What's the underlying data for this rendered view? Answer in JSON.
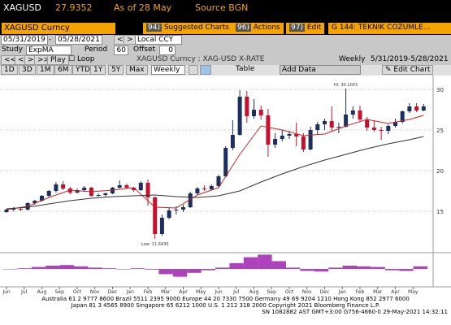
{
  "header": {
    "ticker": "XAGUSD",
    "price": "27.9352",
    "as_of": "As of 28 May",
    "source": "Source BGN"
  },
  "menu": [
    {
      "num": "94)",
      "label": "Suggested Charts"
    },
    {
      "num": "96)",
      "label": "Actions"
    },
    {
      "num": "97)",
      "label": "Edit"
    },
    {
      "num": "G 144:",
      "label": "TEKNIK COZUMLE..."
    }
  ],
  "security": "XAGUSD Curncy",
  "dates": {
    "start": "05/31/2019",
    "end": "05/28/2021",
    "currency": "Local CCY"
  },
  "study": {
    "label": "Study",
    "name": "ExpMA",
    "period_label": "Period",
    "period": "60",
    "offset_label": "Offset",
    "offset": "0"
  },
  "controls": {
    "play": "Play",
    "loop": "Loop",
    "description": "XAGUSD Curncy : XAG-USD X-RATE",
    "frequency": "Weekly",
    "range": "5/31/2019-5/28/2021"
  },
  "ranges": [
    "1D",
    "3D",
    "1M",
    "6M",
    "YTD",
    "1Y",
    "5Y",
    "Max"
  ],
  "toolbar": {
    "frequency": "Weekly",
    "table": "Table",
    "add_data": "Add Data",
    "edit_chart": "Edit Chart"
  },
  "chart_data": {
    "type": "candlestick",
    "up_color": "#1c2f5e",
    "down_color": "#c8102e",
    "ohlc": [
      [
        14.9,
        15.3,
        14.8,
        15.2
      ],
      [
        15.2,
        15.5,
        15.0,
        15.3
      ],
      [
        15.3,
        15.4,
        15.0,
        15.2
      ],
      [
        15.2,
        16.1,
        15.1,
        16.0
      ],
      [
        16.0,
        16.4,
        15.8,
        16.3
      ],
      [
        16.3,
        17.0,
        16.2,
        16.9
      ],
      [
        16.9,
        17.6,
        16.7,
        17.5
      ],
      [
        17.5,
        18.6,
        17.3,
        18.3
      ],
      [
        18.3,
        18.7,
        17.6,
        17.8
      ],
      [
        17.8,
        18.0,
        17.1,
        17.3
      ],
      [
        17.3,
        17.8,
        17.2,
        17.6
      ],
      [
        17.6,
        18.1,
        17.4,
        17.9
      ],
      [
        17.9,
        18.0,
        16.8,
        16.9
      ],
      [
        16.9,
        17.2,
        16.8,
        17.0
      ],
      [
        17.0,
        17.3,
        16.8,
        17.2
      ],
      [
        17.2,
        18.0,
        17.1,
        17.9
      ],
      [
        17.9,
        18.8,
        17.8,
        18.2
      ],
      [
        18.2,
        18.4,
        17.8,
        17.9
      ],
      [
        17.9,
        18.0,
        17.4,
        17.6
      ],
      [
        17.6,
        18.7,
        17.5,
        18.5
      ],
      [
        18.5,
        18.9,
        15.7,
        16.7
      ],
      [
        16.7,
        16.8,
        11.6,
        12.2
      ],
      [
        12.2,
        14.6,
        12.0,
        14.2
      ],
      [
        14.2,
        15.5,
        14.0,
        15.1
      ],
      [
        15.1,
        15.6,
        14.6,
        15.2
      ],
      [
        15.2,
        15.8,
        14.9,
        15.5
      ],
      [
        15.5,
        17.4,
        15.4,
        17.2
      ],
      [
        17.2,
        18.0,
        17.0,
        17.8
      ],
      [
        17.8,
        18.2,
        17.5,
        17.7
      ],
      [
        17.7,
        18.3,
        17.6,
        18.1
      ],
      [
        18.1,
        19.5,
        17.9,
        19.3
      ],
      [
        19.3,
        23.0,
        19.2,
        22.8
      ],
      [
        22.8,
        26.2,
        22.5,
        24.4
      ],
      [
        24.4,
        29.9,
        24.3,
        29.1
      ],
      [
        29.1,
        29.8,
        25.9,
        26.7
      ],
      [
        26.7,
        28.8,
        26.4,
        27.5
      ],
      [
        27.5,
        28.0,
        26.3,
        26.8
      ],
      [
        26.8,
        27.6,
        21.7,
        23.2
      ],
      [
        23.2,
        24.6,
        22.8,
        23.9
      ],
      [
        23.9,
        25.0,
        23.6,
        24.3
      ],
      [
        24.3,
        24.9,
        23.9,
        24.5
      ],
      [
        24.5,
        25.9,
        23.0,
        24.2
      ],
      [
        24.2,
        24.6,
        22.3,
        22.6
      ],
      [
        22.6,
        25.4,
        22.5,
        25.0
      ],
      [
        25.0,
        26.0,
        24.4,
        25.7
      ],
      [
        25.7,
        26.4,
        25.0,
        26.1
      ],
      [
        26.1,
        27.9,
        24.8,
        25.3
      ],
      [
        25.3,
        25.9,
        24.6,
        25.4
      ],
      [
        25.4,
        30.1,
        25.3,
        26.9
      ],
      [
        26.9,
        27.9,
        26.4,
        27.4
      ],
      [
        27.4,
        28.0,
        26.1,
        26.3
      ],
      [
        26.3,
        26.6,
        24.9,
        25.3
      ],
      [
        25.3,
        26.1,
        24.8,
        25.0
      ],
      [
        25.0,
        25.4,
        23.8,
        24.9
      ],
      [
        24.9,
        25.7,
        24.5,
        25.5
      ],
      [
        25.5,
        26.4,
        25.3,
        26.0
      ],
      [
        26.0,
        27.4,
        25.8,
        27.3
      ],
      [
        27.3,
        28.3,
        27.1,
        27.9
      ],
      [
        27.9,
        28.3,
        27.2,
        27.4
      ],
      [
        27.4,
        28.2,
        27.3,
        27.9
      ]
    ],
    "overlay_x": [
      0,
      3,
      6,
      9,
      12,
      15,
      18,
      21,
      24,
      27,
      30,
      33,
      36,
      39,
      42,
      45,
      48,
      51,
      54,
      57,
      59
    ],
    "overlays": [
      {
        "color": "#d02020",
        "values": [
          15.2,
          15.6,
          16.7,
          17.6,
          17.4,
          17.6,
          17.9,
          15.5,
          15.4,
          17.0,
          17.9,
          22.0,
          25.5,
          25.0,
          24.3,
          24.5,
          25.5,
          26.3,
          25.8,
          26.3,
          26.8
        ]
      },
      {
        "color": "#333333",
        "values": [
          15.3,
          15.5,
          15.9,
          16.3,
          16.6,
          16.8,
          16.9,
          17.0,
          16.8,
          16.7,
          16.9,
          17.5,
          18.6,
          19.6,
          20.5,
          21.3,
          22.0,
          22.7,
          23.3,
          23.8,
          24.2
        ]
      }
    ],
    "indicator": {
      "color": "#a020b0",
      "values": [
        0,
        0.1,
        0.3,
        0.5,
        0.6,
        0.4,
        0.2,
        0.1,
        0.0,
        0.1,
        -0.1,
        -0.8,
        -1.2,
        -0.6,
        -0.2,
        0.2,
        0.9,
        1.8,
        2.2,
        1.2,
        0.2,
        -0.3,
        -0.4,
        0.2,
        0.5,
        0.4,
        0.3,
        -0.2,
        -0.3,
        0.4
      ]
    },
    "ylim": [
      10.5,
      31.5
    ],
    "yticks": [
      15,
      20,
      25,
      30
    ],
    "grid": true,
    "xticks": [
      {
        "value": 0,
        "label": "Jun"
      },
      {
        "value": 2.5,
        "label": "Jul"
      },
      {
        "value": 5,
        "label": "Aug"
      },
      {
        "value": 7.5,
        "label": "Sep"
      },
      {
        "value": 10,
        "label": "Oct"
      },
      {
        "value": 12.5,
        "label": "Nov"
      },
      {
        "value": 15,
        "label": "Dec"
      },
      {
        "value": 17.5,
        "label": "Jan"
      },
      {
        "value": 20,
        "label": "Feb"
      },
      {
        "value": 22.5,
        "label": "Mar"
      },
      {
        "value": 25,
        "label": "Apr"
      },
      {
        "value": 27.5,
        "label": "May"
      },
      {
        "value": 30,
        "label": "Jun"
      },
      {
        "value": 32.5,
        "label": "Jul"
      },
      {
        "value": 35,
        "label": "Aug"
      },
      {
        "value": 37.5,
        "label": "Sep"
      },
      {
        "value": 40,
        "label": "Oct"
      },
      {
        "value": 42.5,
        "label": "Nov"
      },
      {
        "value": 45,
        "label": "Dec"
      },
      {
        "value": 47.5,
        "label": "Jan"
      },
      {
        "value": 50,
        "label": "Feb"
      },
      {
        "value": 52.5,
        "label": "Mar"
      },
      {
        "value": 55,
        "label": "Apr"
      },
      {
        "value": 57.5,
        "label": "May"
      }
    ],
    "annotations": [
      "Hi: 30.1003",
      "Low: 11.6430"
    ]
  },
  "footer": [
    "Australia 61 2 9777 8600 Brazil 5511 2395 9000 Europe 44 20 7330 7500 Germany 49 69 9204 1210 Hong Kong 852 2977 6000",
    "Japan 81 3 4565 8900        Singapore 65 6212 1000        U.S. 1 212 318 2000        Copyright 2021 Bloomberg Finance L.P.",
    "SN 1082882 AST GMT+3:00 G756-4660-0 29-May-2021 14:32:11"
  ]
}
